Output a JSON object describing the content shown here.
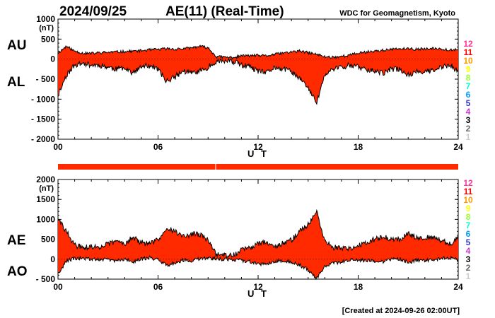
{
  "header": {
    "date": "2024/09/25",
    "title": "AE(11) (Real-Time)",
    "source": "WDC for Geomagnetism, Kyoto"
  },
  "footer": {
    "created": "[Created at 2024-09-26 02:00UT]"
  },
  "colors": {
    "fill": "#ff2a00",
    "line": "#000000",
    "coverage_bar": "#ff2a00",
    "station_counts": [
      "#ff3399",
      "#ff0000",
      "#ff9900",
      "#ffff00",
      "#99ff33",
      "#00ffcc",
      "#0099ff",
      "#3333cc",
      "#cc33cc",
      "#000000",
      "#666666",
      "#cccccc"
    ]
  },
  "station_counts": [
    "12",
    "11",
    "10",
    "9",
    "8",
    "7",
    "6",
    "5",
    "4",
    "3",
    "2",
    "1"
  ],
  "chart_data": [
    {
      "type": "area",
      "panel": "AU/AL",
      "series_labels": [
        "AU",
        "AL"
      ],
      "unit": "(nT)",
      "xlabel": "U T",
      "x_ticks": [
        "00",
        "06",
        "12",
        "18",
        "24"
      ],
      "x_range_hours": [
        0,
        24
      ],
      "ylim": [
        -2000,
        1000
      ],
      "y_ticks": [
        "1000",
        "500",
        "0",
        "- 500",
        "- 1000",
        "- 1500",
        "- 2000"
      ],
      "y_tick_values": [
        1000,
        500,
        0,
        -500,
        -1000,
        -1500,
        -2000
      ],
      "x": [
        0,
        0.5,
        1,
        1.5,
        2,
        2.5,
        3,
        3.5,
        4,
        4.5,
        5,
        5.5,
        6,
        6.5,
        7,
        7.5,
        8,
        8.5,
        9,
        9.5,
        10,
        10.5,
        11,
        11.5,
        12,
        12.5,
        13,
        13.5,
        14,
        14.5,
        15,
        15.5,
        16,
        16.5,
        17,
        17.5,
        18,
        18.5,
        19,
        19.5,
        20,
        20.5,
        21,
        21.5,
        22,
        22.5,
        23,
        23.5,
        24
      ],
      "series": [
        {
          "name": "AU",
          "values": [
            150,
            320,
            200,
            150,
            140,
            160,
            170,
            180,
            190,
            200,
            210,
            230,
            240,
            260,
            250,
            260,
            280,
            320,
            280,
            60,
            50,
            40,
            80,
            90,
            90,
            80,
            120,
            150,
            180,
            200,
            160,
            120,
            60,
            50,
            70,
            100,
            150,
            180,
            200,
            220,
            240,
            260,
            250,
            250,
            250,
            260,
            260,
            230,
            250
          ]
        },
        {
          "name": "AL",
          "values": [
            -900,
            -400,
            -150,
            -100,
            -150,
            -150,
            -200,
            -250,
            -200,
            -350,
            -200,
            -150,
            -250,
            -550,
            -450,
            -300,
            -350,
            -300,
            -200,
            -50,
            -50,
            -60,
            -150,
            -200,
            -300,
            -350,
            -200,
            -250,
            -300,
            -500,
            -700,
            -1100,
            -400,
            -250,
            -200,
            -150,
            -200,
            -250,
            -300,
            -350,
            -250,
            -250,
            -400,
            -300,
            -300,
            -300,
            -200,
            -150,
            -300
          ]
        }
      ]
    },
    {
      "type": "area",
      "panel": "AE/AO",
      "series_labels": [
        "AE",
        "AO"
      ],
      "unit": "(nT)",
      "xlabel": "U T",
      "x_ticks": [
        "00",
        "06",
        "12",
        "18",
        "24"
      ],
      "x_range_hours": [
        0,
        24
      ],
      "ylim": [
        -500,
        2000
      ],
      "y_ticks": [
        "2000",
        "1500",
        "1000",
        "500",
        "0",
        "- 500"
      ],
      "y_tick_values": [
        2000,
        1500,
        1000,
        500,
        0,
        -500
      ],
      "x": [
        0,
        0.5,
        1,
        1.5,
        2,
        2.5,
        3,
        3.5,
        4,
        4.5,
        5,
        5.5,
        6,
        6.5,
        7,
        7.5,
        8,
        8.5,
        9,
        9.5,
        10,
        10.5,
        11,
        11.5,
        12,
        12.5,
        13,
        13.5,
        14,
        14.5,
        15,
        15.5,
        16,
        16.5,
        17,
        17.5,
        18,
        18.5,
        19,
        19.5,
        20,
        20.5,
        21,
        21.5,
        22,
        22.5,
        23,
        23.5,
        24
      ],
      "series": [
        {
          "name": "AE",
          "values": [
            1000,
            700,
            350,
            300,
            300,
            310,
            380,
            450,
            400,
            550,
            410,
            380,
            490,
            800,
            700,
            560,
            630,
            620,
            480,
            110,
            100,
            100,
            230,
            290,
            390,
            430,
            320,
            400,
            480,
            700,
            860,
            1220,
            460,
            300,
            270,
            250,
            350,
            430,
            500,
            570,
            490,
            510,
            650,
            550,
            550,
            560,
            460,
            380,
            550
          ]
        },
        {
          "name": "AO",
          "values": [
            -380,
            -40,
            20,
            20,
            -5,
            5,
            -15,
            -35,
            -5,
            -75,
            5,
            40,
            -5,
            -145,
            -100,
            -20,
            -35,
            10,
            40,
            5,
            0,
            -10,
            -35,
            -55,
            -105,
            -135,
            -40,
            -50,
            -60,
            -150,
            -270,
            -490,
            -170,
            -100,
            -65,
            -25,
            -25,
            -35,
            -50,
            -65,
            -5,
            5,
            -75,
            -25,
            -25,
            -20,
            30,
            40,
            -25
          ]
        }
      ]
    }
  ]
}
